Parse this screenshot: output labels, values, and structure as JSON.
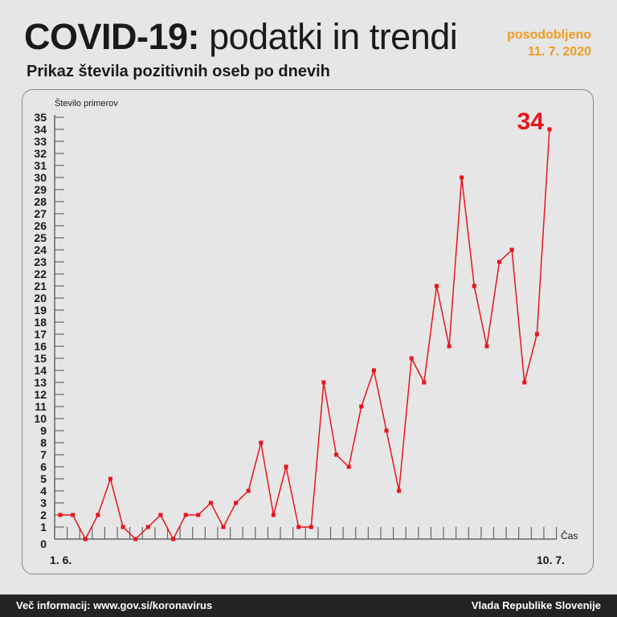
{
  "header": {
    "title_bold": "COVID-19:",
    "title_light": "podatki in trendi",
    "subtitle": "Prikaz števila pozitivnih oseb po dnevih",
    "updated_label": "posodobljeno",
    "updated_date": "11. 7. 2020"
  },
  "footer": {
    "info": "Več informacij: www.gov.si/koronavirus",
    "org": "Vlada Republike Slovenije"
  },
  "colors": {
    "line": "#e8141c",
    "accent": "#f39a1e"
  },
  "chart_data": {
    "type": "line",
    "title": "Prikaz števila pozitivnih oseb po dnevih",
    "xlabel": "Čas",
    "ylabel": "Število primerov",
    "x_start_label": "1. 6.",
    "x_end_label": "10. 7.",
    "ylim": [
      0,
      35
    ],
    "yticks": [
      0,
      1,
      2,
      3,
      4,
      5,
      6,
      7,
      8,
      9,
      10,
      11,
      12,
      13,
      14,
      15,
      16,
      17,
      18,
      19,
      20,
      21,
      22,
      23,
      24,
      25,
      26,
      27,
      28,
      29,
      30,
      31,
      32,
      33,
      34,
      35
    ],
    "values": [
      2,
      2,
      0,
      2,
      5,
      1,
      0,
      1,
      2,
      0,
      2,
      2,
      3,
      1,
      3,
      4,
      8,
      2,
      6,
      1,
      1,
      13,
      7,
      6,
      11,
      14,
      9,
      4,
      15,
      13,
      21,
      16,
      30,
      21,
      16,
      23,
      24,
      13,
      17,
      34
    ],
    "last_value_label": "34"
  }
}
